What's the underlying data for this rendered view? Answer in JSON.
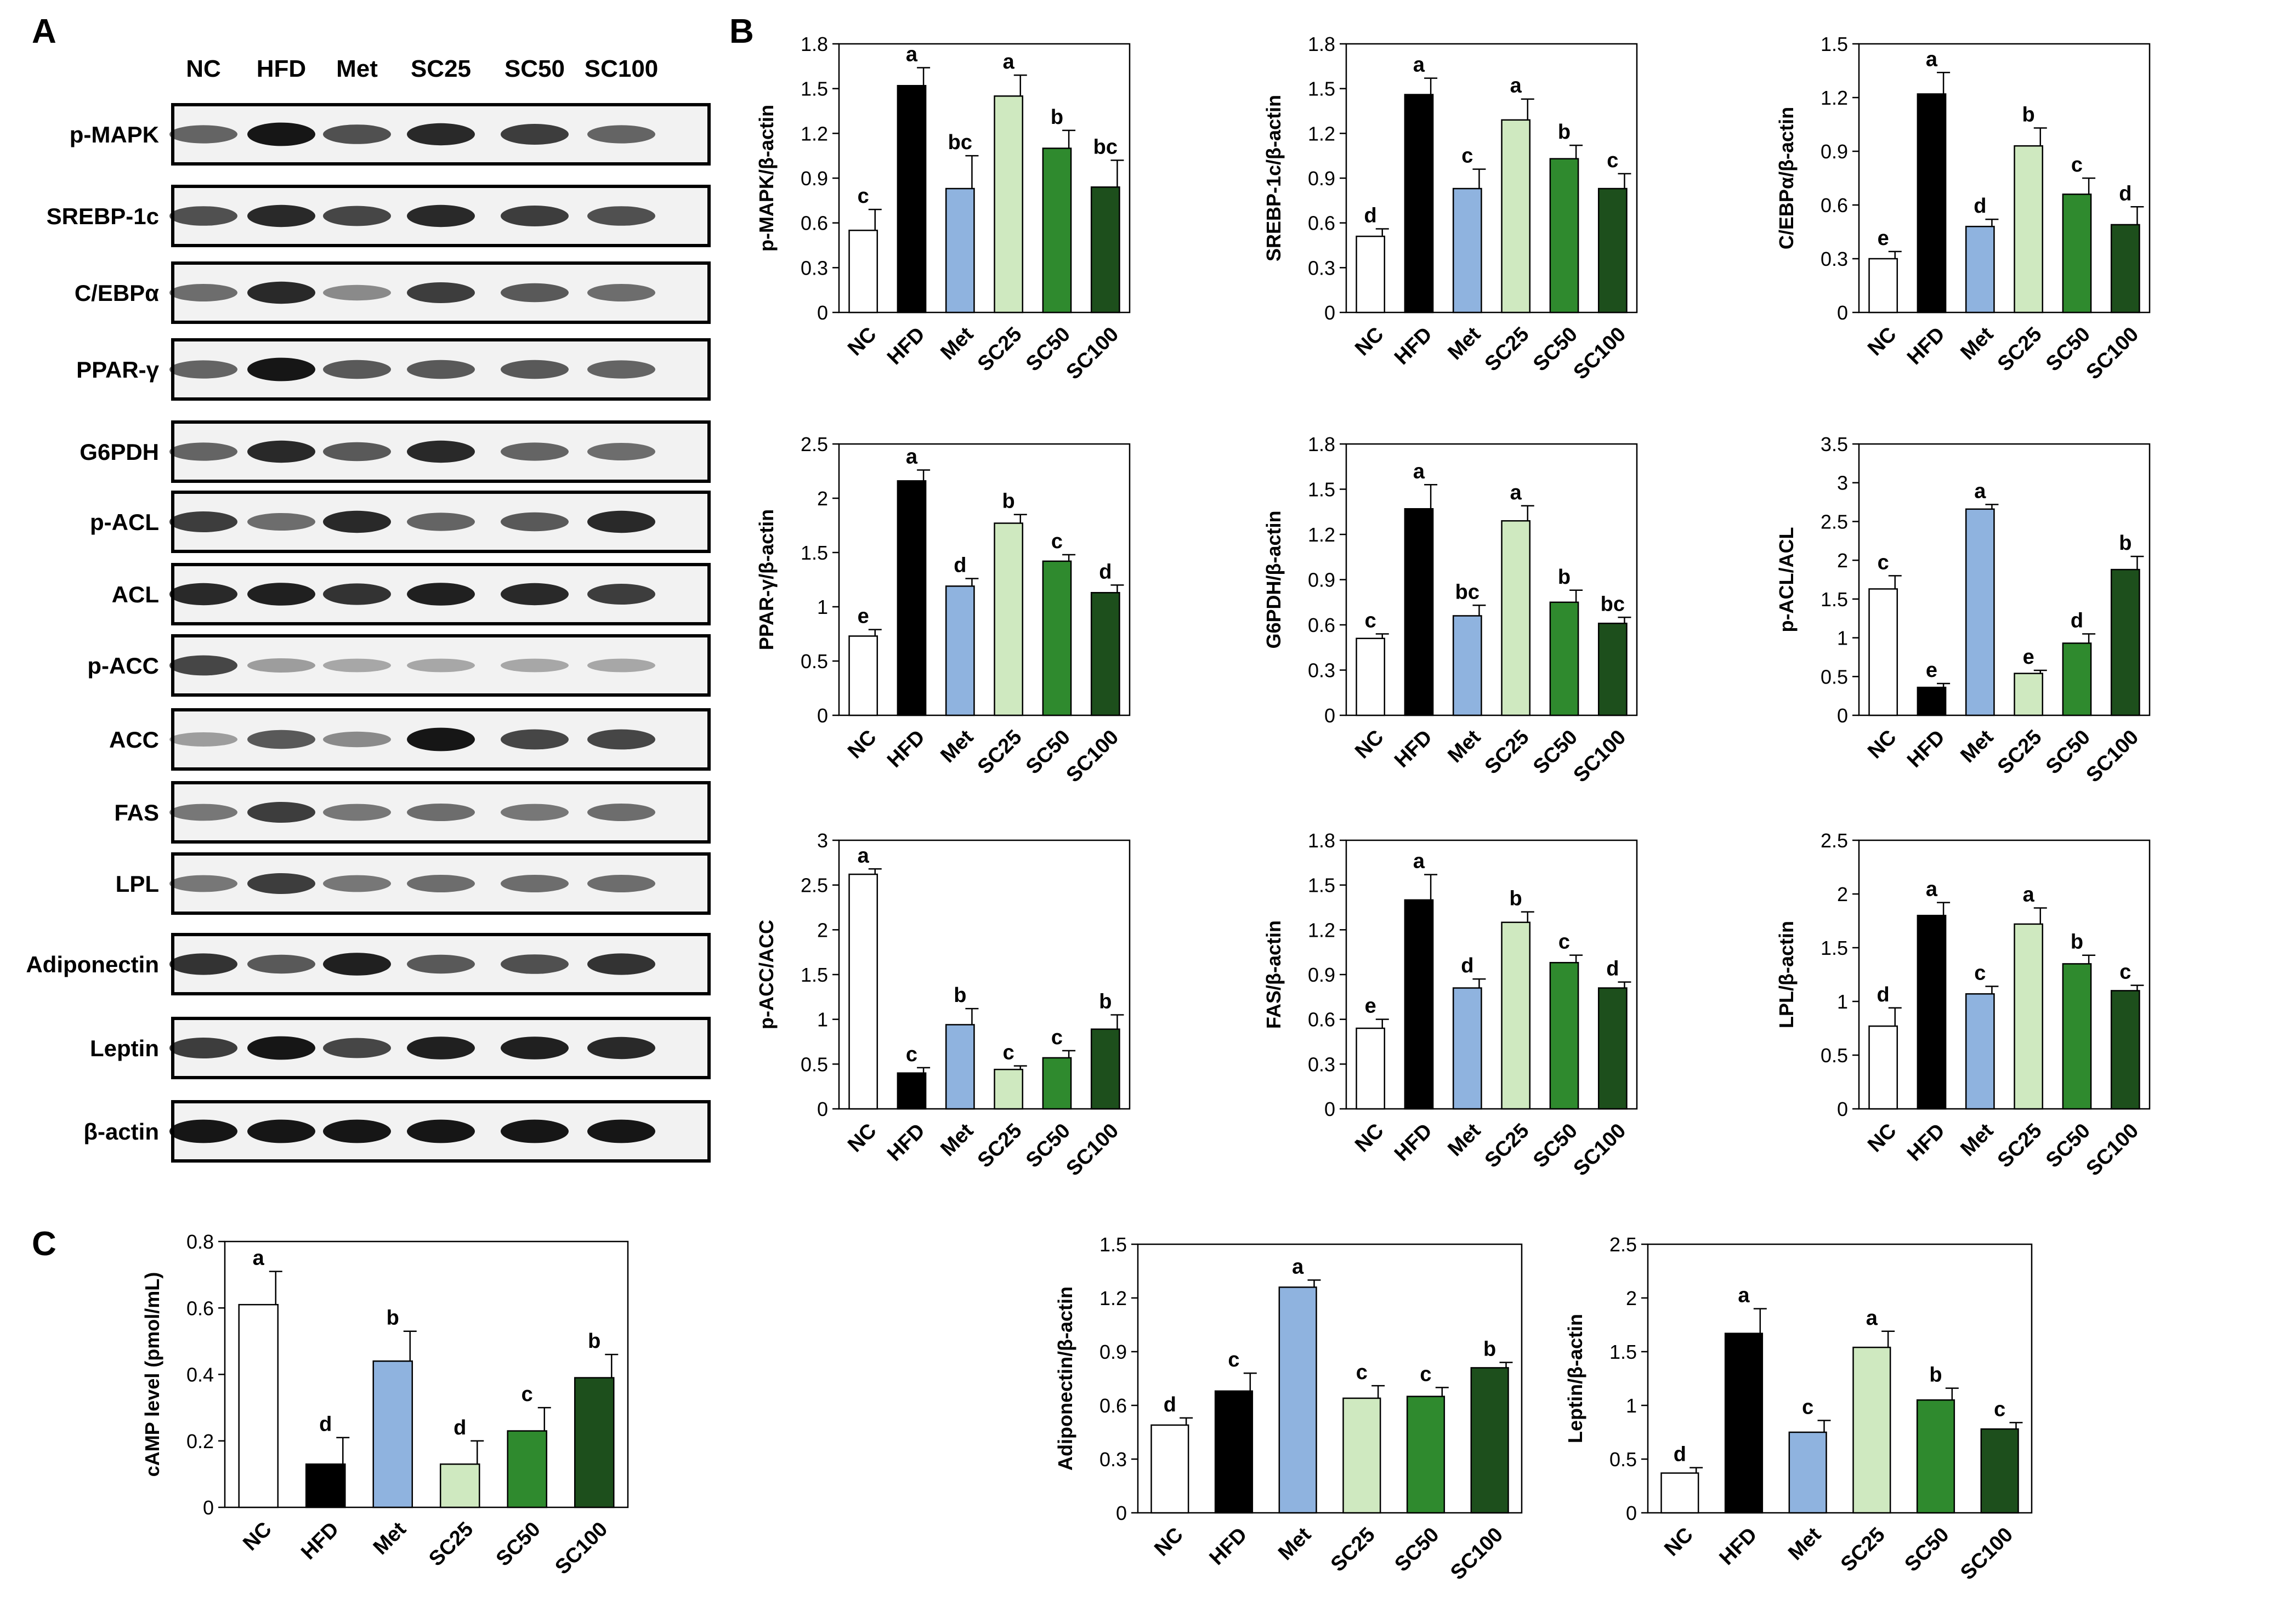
{
  "panel_labels": {
    "A": "A",
    "B": "B",
    "C": "C"
  },
  "colors": {
    "NC": "#ffffff",
    "HFD": "#000000",
    "Met": "#8fb3df",
    "SC25": "#cfe9c0",
    "SC50": "#2f8a2e",
    "SC100": "#1d4f1c"
  },
  "blot": {
    "lanes": [
      "NC",
      "HFD",
      "Met",
      "SC25",
      "SC50",
      "SC100"
    ],
    "proteins": [
      "p-MAPK",
      "SREBP-1c",
      "C/EBPα",
      "PPAR-γ",
      "G6PDH",
      "p-ACL",
      "ACL",
      "p-ACC",
      "ACC",
      "FAS",
      "LPL",
      "Adiponectin",
      "Leptin",
      "β-actin"
    ]
  },
  "chart_data": [
    {
      "type": "bar",
      "panel": "B",
      "ylabel": "p-MAPK/β-actin",
      "ylim": [
        0,
        1.8
      ],
      "yticks": [
        "0",
        "0.3",
        "0.6",
        "0.9",
        "1.2",
        "1.5",
        "1.8"
      ],
      "categories": [
        "NC",
        "HFD",
        "Met",
        "SC25",
        "SC50",
        "SC100"
      ],
      "values": [
        0.55,
        1.52,
        0.83,
        1.45,
        1.1,
        0.84
      ],
      "errors": [
        0.14,
        0.12,
        0.22,
        0.14,
        0.12,
        0.18
      ],
      "letters": [
        "c",
        "a",
        "bc",
        "a",
        "b",
        "bc"
      ]
    },
    {
      "type": "bar",
      "panel": "B",
      "ylabel": "SREBP-1c/β-actin",
      "ylim": [
        0,
        1.8
      ],
      "yticks": [
        "0",
        "0.3",
        "0.6",
        "0.9",
        "1.2",
        "1.5",
        "1.8"
      ],
      "categories": [
        "NC",
        "HFD",
        "Met",
        "SC25",
        "SC50",
        "SC100"
      ],
      "values": [
        0.51,
        1.46,
        0.83,
        1.29,
        1.03,
        0.83
      ],
      "errors": [
        0.05,
        0.11,
        0.13,
        0.14,
        0.09,
        0.1
      ],
      "letters": [
        "d",
        "a",
        "c",
        "a",
        "b",
        "c"
      ]
    },
    {
      "type": "bar",
      "panel": "B",
      "ylabel": "C/EBPα/β-actin",
      "ylim": [
        0,
        1.5
      ],
      "yticks": [
        "0",
        "0.3",
        "0.6",
        "0.9",
        "1.2",
        "1.5"
      ],
      "categories": [
        "NC",
        "HFD",
        "Met",
        "SC25",
        "SC50",
        "SC100"
      ],
      "values": [
        0.3,
        1.22,
        0.48,
        0.93,
        0.66,
        0.49
      ],
      "errors": [
        0.04,
        0.12,
        0.04,
        0.1,
        0.09,
        0.1
      ],
      "letters": [
        "e",
        "a",
        "d",
        "b",
        "c",
        "d"
      ]
    },
    {
      "type": "bar",
      "panel": "B",
      "ylabel": "PPAR-γ/β-actin",
      "ylim": [
        0,
        2.5
      ],
      "yticks": [
        "0",
        "0.5",
        "1",
        "1.5",
        "2",
        "2.5"
      ],
      "categories": [
        "NC",
        "HFD",
        "Met",
        "SC25",
        "SC50",
        "SC100"
      ],
      "values": [
        0.73,
        2.16,
        1.19,
        1.77,
        1.42,
        1.13
      ],
      "errors": [
        0.06,
        0.1,
        0.07,
        0.08,
        0.06,
        0.07
      ],
      "letters": [
        "e",
        "a",
        "d",
        "b",
        "c",
        "d"
      ]
    },
    {
      "type": "bar",
      "panel": "B",
      "ylabel": "G6PDH/β-actin",
      "ylim": [
        0,
        1.8
      ],
      "yticks": [
        "0",
        "0.3",
        "0.6",
        "0.9",
        "1.2",
        "1.5",
        "1.8"
      ],
      "categories": [
        "NC",
        "HFD",
        "Met",
        "SC25",
        "SC50",
        "SC100"
      ],
      "values": [
        0.51,
        1.37,
        0.66,
        1.29,
        0.75,
        0.61
      ],
      "errors": [
        0.03,
        0.16,
        0.07,
        0.1,
        0.08,
        0.04
      ],
      "letters": [
        "c",
        "a",
        "bc",
        "a",
        "b",
        "bc"
      ]
    },
    {
      "type": "bar",
      "panel": "B",
      "ylabel": "p-ACL/ACL",
      "ylim": [
        0,
        3.5
      ],
      "yticks": [
        "0",
        "0.5",
        "1",
        "1.5",
        "2",
        "2.5",
        "3",
        "3.5"
      ],
      "categories": [
        "NC",
        "HFD",
        "Met",
        "SC25",
        "SC50",
        "SC100"
      ],
      "values": [
        1.63,
        0.36,
        2.66,
        0.54,
        0.93,
        1.88
      ],
      "errors": [
        0.17,
        0.05,
        0.06,
        0.04,
        0.12,
        0.17
      ],
      "letters": [
        "c",
        "e",
        "a",
        "e",
        "d",
        "b"
      ]
    },
    {
      "type": "bar",
      "panel": "B",
      "ylabel": "p-ACC/ACC",
      "ylim": [
        0,
        3
      ],
      "yticks": [
        "0",
        "0.5",
        "1",
        "1.5",
        "2",
        "2.5",
        "3"
      ],
      "categories": [
        "NC",
        "HFD",
        "Met",
        "SC25",
        "SC50",
        "SC100"
      ],
      "values": [
        2.62,
        0.4,
        0.94,
        0.44,
        0.57,
        0.89
      ],
      "errors": [
        0.06,
        0.06,
        0.18,
        0.04,
        0.08,
        0.16
      ],
      "letters": [
        "a",
        "c",
        "b",
        "c",
        "c",
        "b"
      ]
    },
    {
      "type": "bar",
      "panel": "B",
      "ylabel": "FAS/β-actin",
      "ylim": [
        0,
        1.8
      ],
      "yticks": [
        "0",
        "0.3",
        "0.6",
        "0.9",
        "1.2",
        "1.5",
        "1.8"
      ],
      "categories": [
        "NC",
        "HFD",
        "Met",
        "SC25",
        "SC50",
        "SC100"
      ],
      "values": [
        0.54,
        1.4,
        0.81,
        1.25,
        0.98,
        0.81
      ],
      "errors": [
        0.06,
        0.17,
        0.06,
        0.07,
        0.05,
        0.04
      ],
      "letters": [
        "e",
        "a",
        "d",
        "b",
        "c",
        "d"
      ]
    },
    {
      "type": "bar",
      "panel": "B",
      "ylabel": "LPL/β-actin",
      "ylim": [
        0,
        2.5
      ],
      "yticks": [
        "0",
        "0.5",
        "1",
        "1.5",
        "2",
        "2.5"
      ],
      "categories": [
        "NC",
        "HFD",
        "Met",
        "SC25",
        "SC50",
        "SC100"
      ],
      "values": [
        0.77,
        1.8,
        1.07,
        1.72,
        1.35,
        1.1
      ],
      "errors": [
        0.17,
        0.12,
        0.07,
        0.15,
        0.08,
        0.05
      ],
      "letters": [
        "d",
        "a",
        "c",
        "a",
        "b",
        "c"
      ]
    },
    {
      "type": "bar",
      "panel": "C",
      "ylabel": "cAMP level (pmol/mL)",
      "ylim": [
        0,
        0.8
      ],
      "yticks": [
        "0",
        "0.2",
        "0.4",
        "0.6",
        "0.8"
      ],
      "categories": [
        "NC",
        "HFD",
        "Met",
        "SC25",
        "SC50",
        "SC100"
      ],
      "values": [
        0.61,
        0.13,
        0.44,
        0.13,
        0.23,
        0.39
      ],
      "errors": [
        0.1,
        0.08,
        0.09,
        0.07,
        0.07,
        0.07
      ],
      "letters": [
        "a",
        "d",
        "b",
        "d",
        "c",
        "b"
      ]
    },
    {
      "type": "bar",
      "panel": "C",
      "ylabel": "Adiponectin/β-actin",
      "ylim": [
        0,
        1.5
      ],
      "yticks": [
        "0",
        "0.3",
        "0.6",
        "0.9",
        "1.2",
        "1.5"
      ],
      "categories": [
        "NC",
        "HFD",
        "Met",
        "SC25",
        "SC50",
        "SC100"
      ],
      "values": [
        0.49,
        0.68,
        1.26,
        0.64,
        0.65,
        0.81
      ],
      "errors": [
        0.04,
        0.1,
        0.04,
        0.07,
        0.05,
        0.03
      ],
      "letters": [
        "d",
        "c",
        "a",
        "c",
        "c",
        "b"
      ]
    },
    {
      "type": "bar",
      "panel": "C",
      "ylabel": "Leptin/β-actin",
      "ylim": [
        0,
        2.5
      ],
      "yticks": [
        "0",
        "0.5",
        "1",
        "1.5",
        "2",
        "2.5"
      ],
      "categories": [
        "NC",
        "HFD",
        "Met",
        "SC25",
        "SC50",
        "SC100"
      ],
      "values": [
        0.37,
        1.67,
        0.75,
        1.54,
        1.05,
        0.78
      ],
      "errors": [
        0.05,
        0.23,
        0.11,
        0.15,
        0.11,
        0.06
      ],
      "letters": [
        "d",
        "a",
        "c",
        "a",
        "b",
        "c"
      ]
    }
  ]
}
